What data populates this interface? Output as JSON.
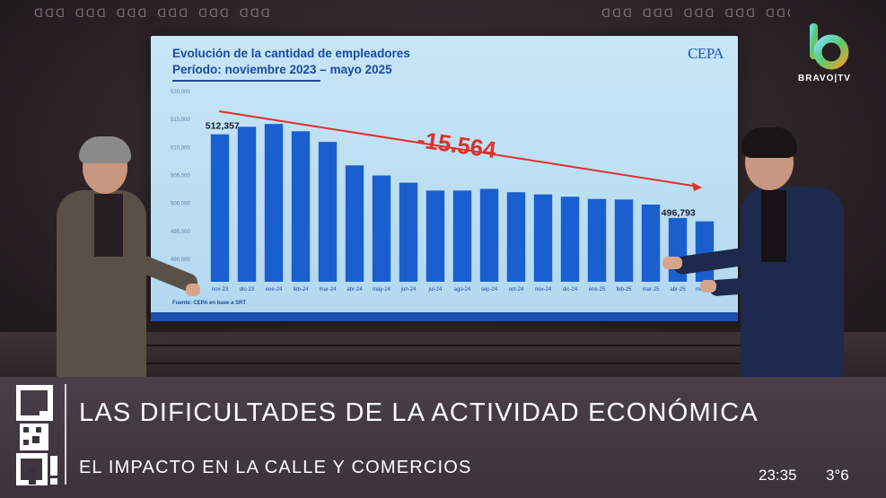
{
  "scene": {
    "pattern_text": "ᗡᗡᗡ ᗡᗡᗡ ᗡᗡᗡ ᗡᗡᗡ ᗡᗡᗡ ᗡᗡᗡ ᗡᗡᗡ"
  },
  "screen": {
    "title_line1": "Evolución de la cantidad de empleadores",
    "title_line2": "Período: noviembre 2023 – mayo 2025",
    "logo": "CEPA",
    "source": "Fuente: CEPA en base a SRT",
    "annotation": "-15.564"
  },
  "chart_data": {
    "type": "bar",
    "title": "Evolución de la cantidad de empleadores",
    "subtitle": "Período: noviembre 2023 – mayo 2025",
    "categories": [
      "nov-23",
      "dic-23",
      "ene-24",
      "feb-24",
      "mar-24",
      "abr-24",
      "may-24",
      "jun-24",
      "jul-24",
      "ago-24",
      "sep-24",
      "oct-24",
      "nov-24",
      "dic-24",
      "ene-25",
      "feb-25",
      "mar-25",
      "abr-25",
      "may-25"
    ],
    "values": [
      512357,
      513700,
      514200,
      512900,
      511000,
      506800,
      505000,
      503700,
      502300,
      502300,
      502600,
      502000,
      501600,
      501200,
      500800,
      500700,
      499800,
      497400,
      496793
    ],
    "data_labels": {
      "first": "512,357",
      "last": "496,793"
    },
    "yticks": [
      "520,000",
      "515,000",
      "510,000",
      "505,000",
      "500,000",
      "495,000",
      "490,000"
    ],
    "ylim": [
      486000,
      520000
    ],
    "bar_color": "#1a5fd0",
    "trend_color": "#e0302c",
    "grid": false
  },
  "broadcast": {
    "channel": "BRAVO",
    "channel_suffix": "TV",
    "program": "Q R!",
    "headline": "LAS DIFICULTADES DE LA ACTIVIDAD ECONÓMICA",
    "subheadline": "EL IMPACTO EN LA CALLE Y COMERCIOS",
    "time": "23:35",
    "temperature": "3°6",
    "accent": "#ffffff"
  }
}
